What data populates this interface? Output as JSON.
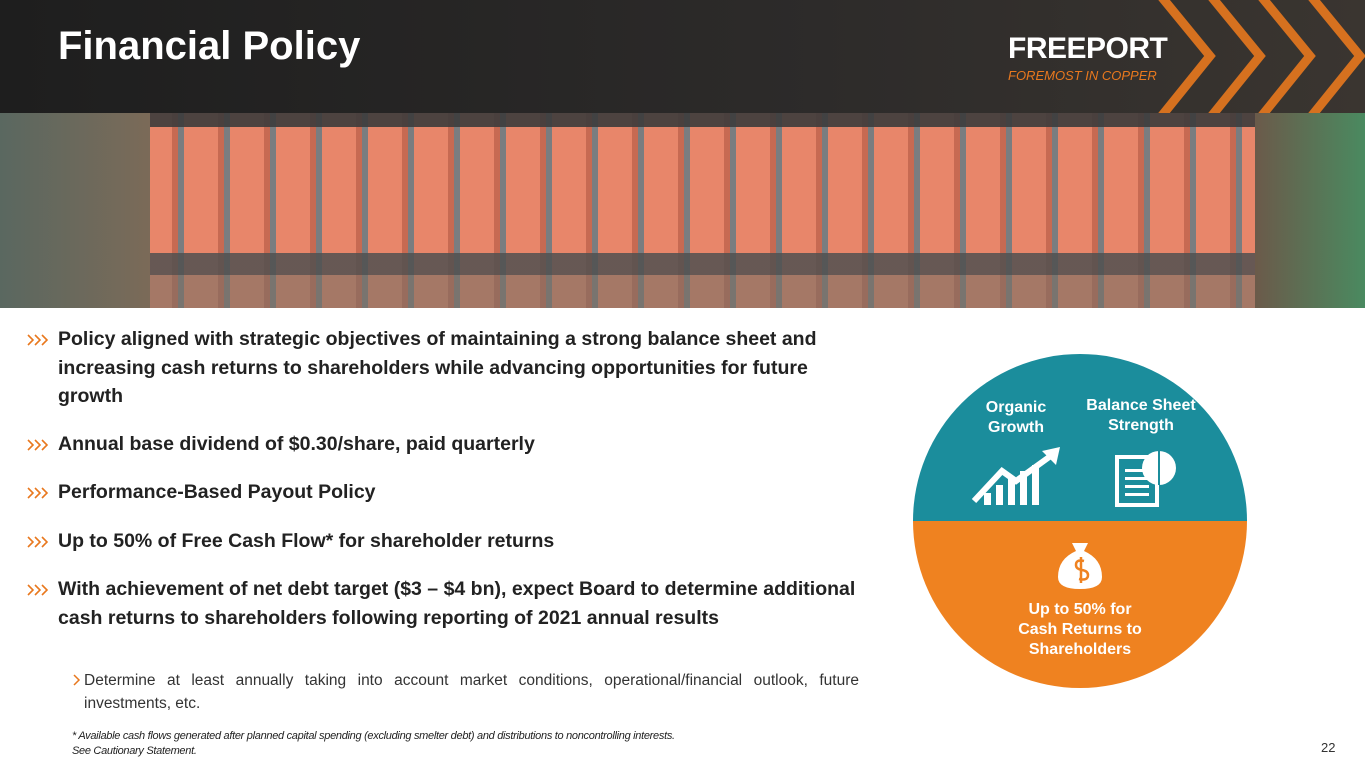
{
  "header": {
    "title": "Financial Policy",
    "logo": "FREEPORT",
    "tagline": "FOREMOST IN COPPER"
  },
  "bullets": [
    "Policy aligned with strategic objectives of maintaining a strong balance sheet and increasing cash returns to shareholders while advancing opportunities for future growth",
    "Annual base dividend of $0.30/share, paid quarterly",
    "Performance-Based Payout Policy",
    "Up to 50% of Free Cash Flow* for shareholder returns",
    "With achievement of net debt target ($3 – $4 bn), expect Board to determine additional cash returns to shareholders following reporting of 2021 annual results"
  ],
  "sub_bullet": "Determine at least annually taking into account market conditions, operational/financial outlook, future investments, etc.",
  "diagram": {
    "top_left": "Organic Growth",
    "top_right": "Balance Sheet Strength",
    "bottom": "Up to 50% for Cash Returns to Shareholders"
  },
  "footnote": [
    "* Available cash flows generated after planned capital spending (excluding smelter debt) and distributions to noncontrolling interests.",
    "See Cautionary Statement."
  ],
  "page_number": "22"
}
